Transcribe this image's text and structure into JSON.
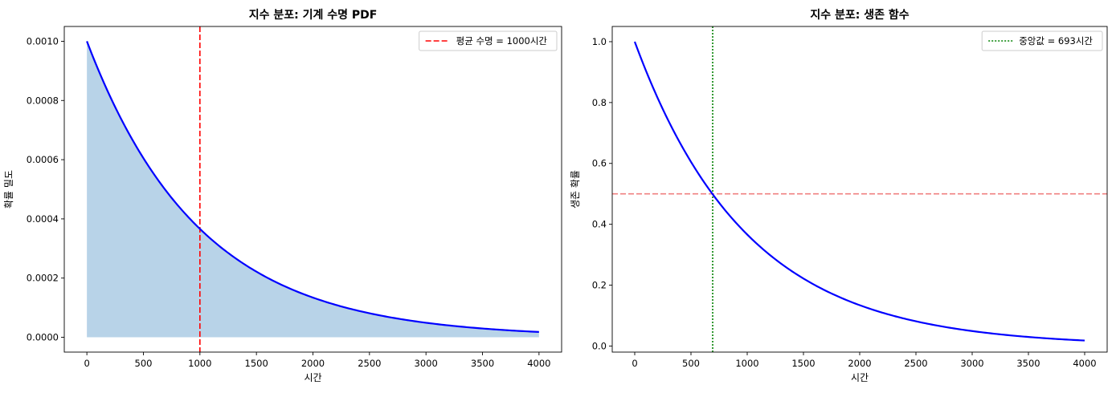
{
  "chart_data": [
    {
      "type": "area",
      "title": "지수 분포: 기계 수명 PDF",
      "xlabel": "시간",
      "ylabel": "확률 밀도",
      "xlim": [
        -200,
        4200
      ],
      "ylim": [
        -5e-05,
        0.00105
      ],
      "xticks": [
        0,
        500,
        1000,
        1500,
        2000,
        2500,
        3000,
        3500,
        4000
      ],
      "xtick_labels": [
        "0",
        "500",
        "1000",
        "1500",
        "2000",
        "2500",
        "3000",
        "3500",
        "4000"
      ],
      "yticks": [
        0,
        0.0002,
        0.0004,
        0.0006,
        0.0008,
        0.001
      ],
      "ytick_labels": [
        "0.0000",
        "0.0002",
        "0.0004",
        "0.0006",
        "0.0008",
        "0.0010"
      ],
      "grid": false,
      "legend_position": "top-right",
      "series": [
        {
          "kind": "line+fill",
          "color": "#0000ff",
          "fill_color": "#b8d3e8",
          "x": [
            0,
            250,
            500,
            750,
            1000,
            1250,
            1500,
            1750,
            2000,
            2250,
            2500,
            2750,
            3000,
            3250,
            3500,
            3750,
            4000
          ],
          "y": [
            0.001,
            0.000779,
            0.000607,
            0.000472,
            0.000368,
            0.000287,
            0.000223,
            0.000174,
            0.000135,
            0.000105,
            8.2e-05,
            6.4e-05,
            5e-05,
            3.9e-05,
            3e-05,
            2.4e-05,
            1.8e-05
          ]
        }
      ],
      "reference_lines": [
        {
          "orientation": "vertical",
          "value": 1000,
          "style": "dashed",
          "color": "#ff0000",
          "legend": "평균 수명 = 1000시간"
        }
      ]
    },
    {
      "type": "line",
      "title": "지수 분포: 생존 함수",
      "xlabel": "시간",
      "ylabel": "생존 확률",
      "xlim": [
        -200,
        4200
      ],
      "ylim": [
        -0.02,
        1.05
      ],
      "xticks": [
        0,
        500,
        1000,
        1500,
        2000,
        2500,
        3000,
        3500,
        4000
      ],
      "xtick_labels": [
        "0",
        "500",
        "1000",
        "1500",
        "2000",
        "2500",
        "3000",
        "3500",
        "4000"
      ],
      "yticks": [
        0,
        0.2,
        0.4,
        0.6,
        0.8,
        1.0
      ],
      "ytick_labels": [
        "0.0",
        "0.2",
        "0.4",
        "0.6",
        "0.8",
        "1.0"
      ],
      "grid": false,
      "legend_position": "top-right",
      "series": [
        {
          "kind": "line",
          "color": "#0000ff",
          "x": [
            0,
            250,
            500,
            750,
            1000,
            1250,
            1500,
            1750,
            2000,
            2250,
            2500,
            2750,
            3000,
            3250,
            3500,
            3750,
            4000
          ],
          "y": [
            1.0,
            0.779,
            0.607,
            0.472,
            0.368,
            0.287,
            0.223,
            0.174,
            0.135,
            0.105,
            0.082,
            0.064,
            0.05,
            0.039,
            0.03,
            0.024,
            0.018
          ]
        }
      ],
      "reference_lines": [
        {
          "orientation": "vertical",
          "value": 693,
          "style": "dotted",
          "color": "#008000",
          "legend": "중앙값 = 693시간"
        },
        {
          "orientation": "horizontal",
          "value": 0.5,
          "style": "dashed",
          "color": "#f08080",
          "legend": ""
        }
      ]
    }
  ]
}
